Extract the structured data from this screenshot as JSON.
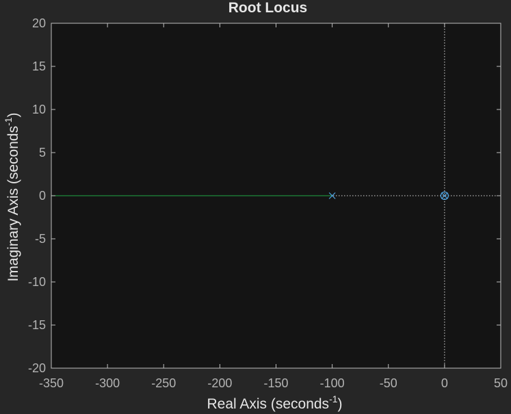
{
  "chart_data": {
    "type": "line",
    "title": "Root Locus",
    "xlabel": {
      "text": "Real Axis (seconds",
      "superscript": "-1",
      "suffix": ")"
    },
    "ylabel": {
      "text": "Imaginary Axis (seconds",
      "superscript": "-1",
      "suffix": ")"
    },
    "xlim": [
      -350,
      50
    ],
    "ylim": [
      -20,
      20
    ],
    "xticks": [
      -350,
      -300,
      -250,
      -200,
      -150,
      -100,
      -50,
      0,
      50
    ],
    "yticks": [
      -20,
      -15,
      -10,
      -5,
      0,
      5,
      10,
      15,
      20
    ],
    "grid": false,
    "series": [
      {
        "kind": "locus-branch",
        "color": "#1f8a3a",
        "points": [
          [
            -350,
            0
          ],
          [
            -100,
            0
          ]
        ]
      }
    ],
    "poles": [
      {
        "x": -100,
        "y": 0,
        "color": "#4fa3e0"
      },
      {
        "x": 0,
        "y": 0,
        "color": "#4fa3e0"
      }
    ],
    "zeros": [
      {
        "x": 0,
        "y": 0,
        "color": "#4fa3e0"
      }
    ],
    "reference_lines": {
      "x0": true,
      "y0": true,
      "color": "#d9d9d9"
    },
    "colors": {
      "figure_bg": "#262626",
      "axes_bg": "#141414",
      "axes_edge": "#bfbfbf",
      "tick_text": "#b3b3b3",
      "label_text": "#e6e6e6"
    }
  }
}
